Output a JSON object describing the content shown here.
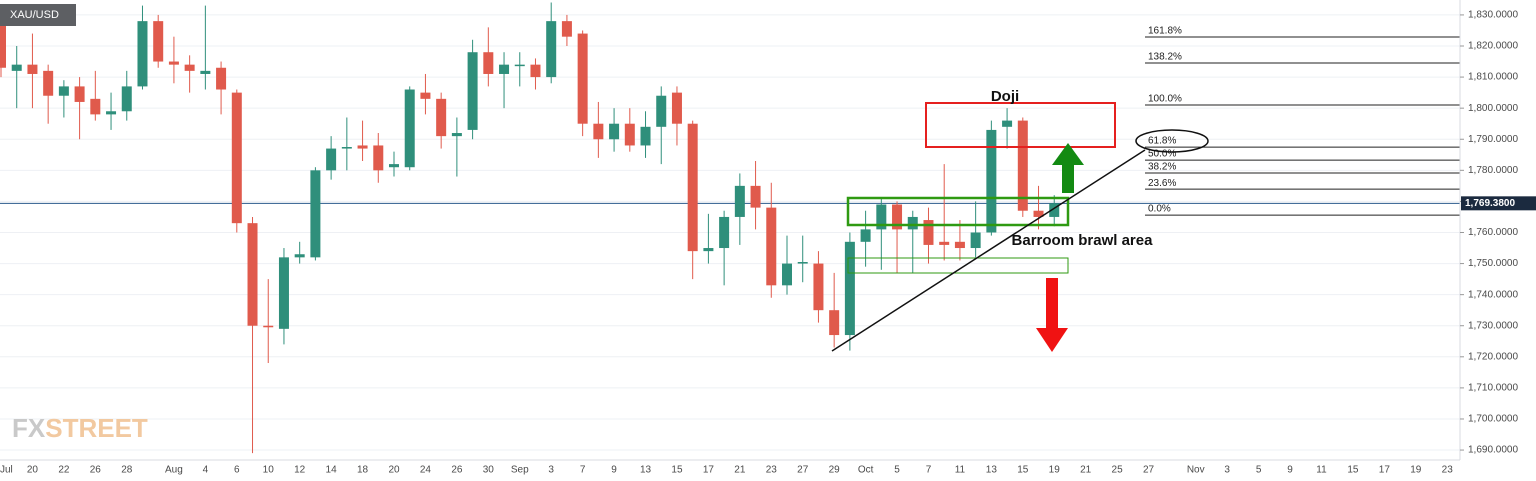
{
  "chart_data": {
    "type": "candlestick",
    "title": "XAU/USD",
    "watermark": "FXSTREET",
    "categories": [
      "Jul",
      null,
      "20",
      null,
      "22",
      null,
      "26",
      null,
      "28",
      null,
      null,
      "Aug",
      null,
      "4",
      null,
      "6",
      null,
      "10",
      null,
      "12",
      null,
      "14",
      null,
      "18",
      null,
      "20",
      null,
      "24",
      null,
      "26",
      null,
      "30",
      null,
      "Sep",
      null,
      "3",
      null,
      "7",
      null,
      "9",
      null,
      "13",
      null,
      "15",
      null,
      "17",
      null,
      "21",
      null,
      "23",
      null,
      "27",
      null,
      "29",
      null,
      "Oct",
      null,
      "5",
      null,
      "7",
      null,
      "11",
      null,
      "13",
      null,
      "15",
      null,
      "19",
      null,
      "21",
      null,
      "25",
      null,
      "27",
      null,
      null,
      "Nov",
      null,
      "3",
      null,
      "5",
      null,
      "9",
      null,
      "11",
      null,
      "15",
      null,
      "17",
      null,
      "19",
      null,
      "23"
    ],
    "open": [
      1829,
      1812,
      1814,
      1812,
      1804,
      1807,
      1803,
      1798,
      1799,
      1807,
      1828,
      1815,
      1814,
      1811,
      1813,
      1805,
      1763,
      1730,
      1729,
      1752,
      1752,
      1780,
      1787,
      1788,
      1788,
      1781,
      1781,
      1805,
      1803,
      1791,
      1793,
      1818,
      1811,
      1814,
      1814,
      1810,
      1828,
      1824,
      1795,
      1790,
      1795,
      1788,
      1794,
      1805,
      1795,
      1754,
      1755,
      1765,
      1775,
      1768,
      1743,
      1750,
      1750,
      1735,
      1727,
      1757,
      1761,
      1769,
      1761,
      1764,
      1757,
      1757,
      1755,
      1760,
      1794,
      1796,
      1767,
      1765,
      null,
      null,
      null,
      null,
      null,
      null,
      null,
      null,
      null,
      null,
      null,
      null,
      null,
      null,
      null,
      null,
      null,
      null,
      null,
      null,
      null,
      null,
      null,
      null,
      null
    ],
    "high": [
      1833,
      1820,
      1824,
      1814,
      1809,
      1810,
      1812,
      1805,
      1812,
      1833,
      1830,
      1823,
      1817,
      1833,
      1815,
      1806,
      1765,
      1745,
      1755,
      1757,
      1781,
      1791,
      1797,
      1796,
      1792,
      1786,
      1807,
      1811,
      1805,
      1797,
      1822,
      1826,
      1818,
      1818,
      1816,
      1834,
      1830,
      1825,
      1802,
      1800,
      1800,
      1799,
      1807,
      1807,
      1796,
      1766,
      1767,
      1779,
      1783,
      1776,
      1759,
      1759,
      1754,
      1747,
      1760,
      1767,
      1771,
      1770,
      1767,
      1768,
      1782,
      1764,
      1770,
      1796,
      1800,
      1797,
      1775,
      1772,
      null,
      null,
      null,
      null,
      null,
      null,
      null,
      null,
      null,
      null,
      null,
      null,
      null,
      null,
      null,
      null,
      null,
      null,
      null,
      null,
      null,
      null,
      null,
      null,
      null
    ],
    "low": [
      1810,
      1800,
      1800,
      1795,
      1797,
      1790,
      1796,
      1793,
      1796,
      1806,
      1813,
      1808,
      1805,
      1806,
      1798,
      1760,
      1689,
      1718,
      1724,
      1750,
      1751,
      1777,
      1780,
      1783,
      1776,
      1778,
      1780,
      1798,
      1787,
      1778,
      1790,
      1807,
      1800,
      1807,
      1806,
      1808,
      1820,
      1791,
      1784,
      1786,
      1786,
      1784,
      1782,
      1788,
      1745,
      1750,
      1743,
      1756,
      1761,
      1739,
      1740,
      1744,
      1731,
      1723,
      1722,
      1749,
      1748,
      1747,
      1747,
      1750,
      1751,
      1751,
      1752,
      1759,
      1787,
      1765,
      1761,
      1762,
      null,
      null,
      null,
      null,
      null,
      null,
      null,
      null,
      null,
      null,
      null,
      null,
      null,
      null,
      null,
      null,
      null,
      null,
      null,
      null,
      null,
      null,
      null,
      null,
      null
    ],
    "close": [
      1813,
      1814,
      1811,
      1804,
      1807,
      1802,
      1798,
      1799,
      1807,
      1828,
      1815,
      1814,
      1812,
      1812,
      1806,
      1763,
      1730,
      1729.5,
      1752,
      1753,
      1780,
      1787,
      1787.5,
      1787,
      1780,
      1782,
      1806,
      1803,
      1791,
      1792,
      1818,
      1811,
      1814,
      1814,
      1810,
      1828,
      1823,
      1795,
      1790,
      1795,
      1788,
      1794,
      1804,
      1795,
      1754,
      1755,
      1765,
      1775,
      1768,
      1743,
      1750,
      1750.5,
      1735,
      1727,
      1757,
      1761,
      1769,
      1761,
      1765,
      1756,
      1756,
      1755,
      1760,
      1793,
      1796,
      1767,
      1765,
      1769.38,
      null,
      null,
      null,
      null,
      null,
      null,
      null,
      null,
      null,
      null,
      null,
      null,
      null,
      null,
      null,
      null,
      null,
      null,
      null,
      null,
      null,
      null,
      null,
      null,
      null
    ],
    "up_color": "#2f8f7b",
    "down_color": "#e05a4c",
    "ylim": [
      1686.8,
      1834.8
    ],
    "yticks": [
      {
        "value": 1690,
        "label": "1,690.0000"
      },
      {
        "value": 1700,
        "label": "1,700.0000"
      },
      {
        "value": 1710,
        "label": "1,710.0000"
      },
      {
        "value": 1720,
        "label": "1,720.0000"
      },
      {
        "value": 1730,
        "label": "1,730.0000"
      },
      {
        "value": 1740,
        "label": "1,740.0000"
      },
      {
        "value": 1750,
        "label": "1,750.0000"
      },
      {
        "value": 1760,
        "label": "1,760.0000"
      },
      {
        "value": 1770,
        "label": "1,770.0000"
      },
      {
        "value": 1780,
        "label": "1,780.0000"
      },
      {
        "value": 1790,
        "label": "1,790.0000"
      },
      {
        "value": 1800,
        "label": "1,800.0000"
      },
      {
        "value": 1810,
        "label": "1,810.0000"
      },
      {
        "value": 1820,
        "label": "1,820.0000"
      },
      {
        "value": 1830,
        "label": "1,830.0000"
      }
    ],
    "grid": true,
    "last_price": {
      "value": 1769.38,
      "label": "1,769.3800"
    },
    "fib": {
      "from": 1765.6,
      "to": 1801,
      "levels": [
        {
          "value": 161.8,
          "label": "161.8%"
        },
        {
          "value": 138.2,
          "label": "138.2%"
        },
        {
          "value": 100,
          "label": "100.0%"
        },
        {
          "value": 61.8,
          "label": "61.8%"
        },
        {
          "value": 50,
          "label": "50.0%"
        },
        {
          "value": 38.2,
          "label": "38.2%"
        },
        {
          "value": 23.6,
          "label": "23.6%"
        },
        {
          "value": 0,
          "label": "0.0%"
        }
      ]
    },
    "annotations": [
      "Doji",
      "Barroom brawl area"
    ]
  }
}
